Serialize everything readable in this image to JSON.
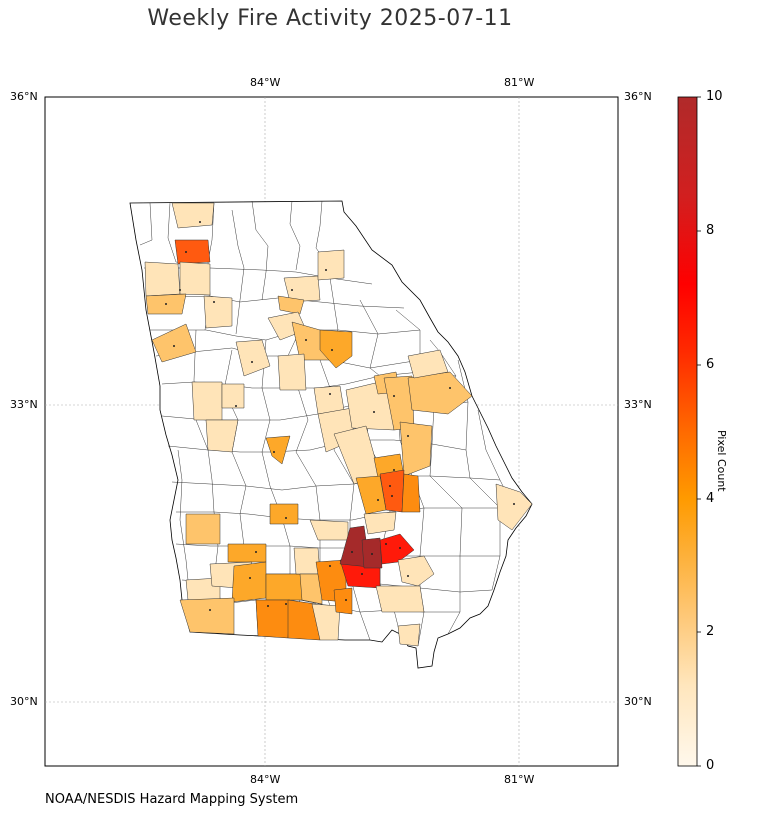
{
  "title": "Weekly Fire Activity 2025-07-11",
  "credit": "NOAA/NESDIS Hazard Mapping System",
  "map": {
    "lon_ticks": [
      {
        "value": -84,
        "label": "84°W"
      },
      {
        "value": -81,
        "label": "81°W"
      }
    ],
    "lat_ticks": [
      {
        "value": 36,
        "label": "36°N"
      },
      {
        "value": 33,
        "label": "33°N"
      },
      {
        "value": 30,
        "label": "30°N"
      }
    ],
    "gridlines": true
  },
  "colorbar": {
    "label": "Pixel Count",
    "range": [
      0,
      10
    ],
    "ticks": [
      "0",
      "2",
      "4",
      "6",
      "8",
      "10"
    ],
    "colors": [
      "#fff5e6",
      "#ffe4b8",
      "#fec46b",
      "#fda829",
      "#fd8c10",
      "#ff5a10",
      "#ff1a0a",
      "#c52020",
      "#a52a2a"
    ]
  },
  "chart_data": {
    "type": "choropleth",
    "title": "Weekly Fire Activity 2025-07-11",
    "legend": "Pixel Count",
    "value_range": [
      0,
      10
    ]
  }
}
